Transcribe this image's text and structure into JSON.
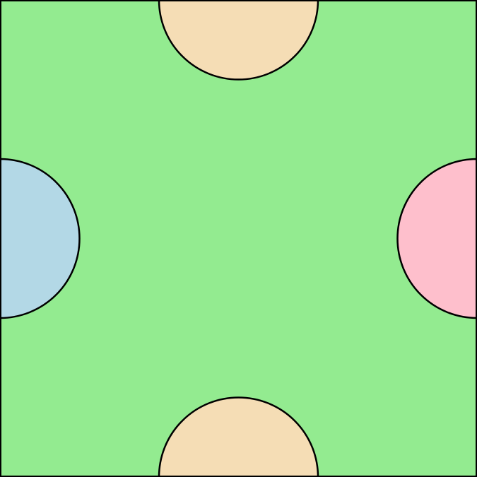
{
  "colors": {
    "field": "#93EB90",
    "outline": "#000000",
    "top_shape": "#F5DDB5",
    "bottom_shape": "#F5DDB5",
    "left_shape": "#B3D8E6",
    "right_shape": "#FEBFCC"
  },
  "shapes": [
    {
      "name": "top-semicircle",
      "edge": "top",
      "color_key": "top_shape"
    },
    {
      "name": "right-semicircle",
      "edge": "right",
      "color_key": "right_shape"
    },
    {
      "name": "bottom-semicircle",
      "edge": "bottom",
      "color_key": "bottom_shape"
    },
    {
      "name": "left-semicircle",
      "edge": "left",
      "color_key": "left_shape"
    }
  ]
}
